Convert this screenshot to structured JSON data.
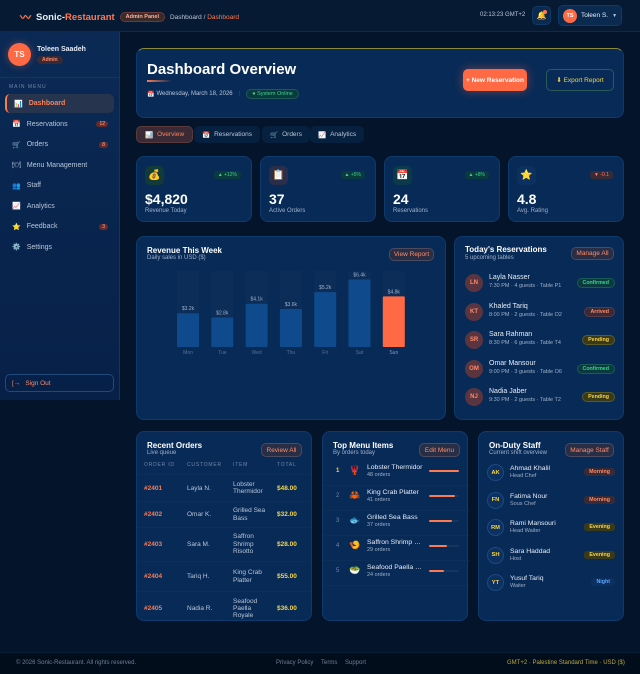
{
  "header": {
    "brand_first": "Sonic-",
    "brand_second": "Restaurant",
    "panel_badge": "Admin Panel",
    "breadcrumb": [
      "Dashboard",
      "Dashboard"
    ],
    "clock": "02:13:23 GMT+2",
    "user_initials": "TS",
    "user_name": "Toleen S."
  },
  "sidebar": {
    "user_initials": "TS",
    "user_name": "Toleen Saadeh",
    "role": "Admin",
    "section": "MAIN MENU",
    "items": [
      {
        "label": "Dashboard",
        "icon": "📊",
        "active": true
      },
      {
        "label": "Reservations",
        "icon": "📅",
        "count": "12"
      },
      {
        "label": "Orders",
        "icon": "🛒",
        "count": "8"
      },
      {
        "label": "Menu Management",
        "icon": "🍽"
      },
      {
        "label": "Staff",
        "icon": "👥"
      },
      {
        "label": "Analytics",
        "icon": "📈"
      },
      {
        "label": "Feedback",
        "icon": "⭐",
        "count": "3"
      },
      {
        "label": "Settings",
        "icon": "⚙️"
      }
    ],
    "signout": "Sign Out"
  },
  "hero": {
    "title": "Dashboard Overview",
    "date": "Wednesday, March 18, 2026",
    "status": "System Online",
    "new_btn": "+ New Reservation",
    "export_btn": "⬇ Export Report"
  },
  "tabs": [
    {
      "label": "Overview",
      "icon": "📊"
    },
    {
      "label": "Reservations",
      "icon": "📅"
    },
    {
      "label": "Orders",
      "icon": "🛒"
    },
    {
      "label": "Analytics",
      "icon": "📈"
    }
  ],
  "stats": [
    {
      "icon": "💰",
      "change": "▲ +12%",
      "value": "$4,820",
      "label": "Revenue Today"
    },
    {
      "icon": "📋",
      "change": "▲ +5%",
      "value": "37",
      "label": "Active Orders"
    },
    {
      "icon": "📅",
      "change": "▲ +8%",
      "value": "24",
      "label": "Reservations"
    },
    {
      "icon": "⭐",
      "change": "▼ -0.1",
      "value": "4.8",
      "label": "Avg. Rating"
    }
  ],
  "revenue": {
    "title": "Revenue This Week",
    "subtitle": "Daily sales in USD ($)",
    "button": "View Report"
  },
  "chart_data": {
    "type": "bar",
    "categories": [
      "Mon",
      "Tue",
      "Wed",
      "Thu",
      "Fri",
      "Sat",
      "Sun"
    ],
    "values": [
      3200,
      2800,
      4100,
      3600,
      5200,
      6400,
      4800
    ],
    "labels": [
      "$3.2k",
      "$2.8k",
      "$4.1k",
      "$3.6k",
      "$5.2k",
      "$6.4k",
      "$4.8k"
    ],
    "highlight": "Sun",
    "colors": {
      "bar": "#0f4a8c",
      "highlight": "#ff6a45"
    }
  },
  "reservations": {
    "title": "Today's Reservations",
    "subtitle": "5 upcoming tables",
    "button": "Manage All",
    "rows": [
      {
        "initials": "LN",
        "name": "Layla Nasser",
        "detail": "7:30 PM · 4 guests · Table P1",
        "status": "Confirmed",
        "cls": "confirmed"
      },
      {
        "initials": "KT",
        "name": "Khaled Tariq",
        "detail": "8:00 PM · 2 guests · Table O2",
        "status": "Arrived",
        "cls": "arrived"
      },
      {
        "initials": "SR",
        "name": "Sara Rahman",
        "detail": "8:30 PM · 6 guests · Table T4",
        "status": "Pending",
        "cls": "pending"
      },
      {
        "initials": "OM",
        "name": "Omar Mansour",
        "detail": "9:00 PM · 3 guests · Table O6",
        "status": "Confirmed",
        "cls": "confirmed"
      },
      {
        "initials": "NJ",
        "name": "Nadia Jaber",
        "detail": "9:30 PM · 2 guests · Table T2",
        "status": "Pending",
        "cls": "pending"
      }
    ]
  },
  "orders": {
    "title": "Recent Orders",
    "subtitle": "Live queue",
    "button": "Review All",
    "columns": [
      "ORDER ID",
      "CUSTOMER",
      "ITEM",
      "TOTAL"
    ],
    "rows": [
      {
        "id": "#2401",
        "customer": "Layla N.",
        "item": "Lobster Thermidor",
        "total": "$48.00"
      },
      {
        "id": "#2402",
        "customer": "Omar K.",
        "item": "Grilled Sea Bass",
        "total": "$32.00"
      },
      {
        "id": "#2403",
        "customer": "Sara M.",
        "item": "Saffron Shrimp Risotto",
        "total": "$28.00"
      },
      {
        "id": "#2404",
        "customer": "Tariq H.",
        "item": "King Crab Platter",
        "total": "$55.00"
      },
      {
        "id": "#2405",
        "customer": "Nadia R.",
        "item": "Seafood Paella Royale",
        "total": "$36.00"
      }
    ]
  },
  "menu": {
    "title": "Top Menu Items",
    "subtitle": "By orders today",
    "button": "Edit Menu",
    "items": [
      {
        "rank": "1",
        "icon": "🦞",
        "name": "Lobster Thermidor",
        "orders": "48 orders",
        "count": 48
      },
      {
        "rank": "2",
        "icon": "🦀",
        "name": "King Crab Platter",
        "orders": "41 orders",
        "count": 41
      },
      {
        "rank": "3",
        "icon": "🐟",
        "name": "Grilled Sea Bass",
        "orders": "37 orders",
        "count": 37
      },
      {
        "rank": "4",
        "icon": "🍤",
        "name": "Saffron Shrimp Risotto",
        "orders": "29 orders",
        "count": 29
      },
      {
        "rank": "5",
        "icon": "🥗",
        "name": "Seafood Paella Royale",
        "orders": "24 orders",
        "count": 24
      }
    ]
  },
  "staff": {
    "title": "On-Duty Staff",
    "subtitle": "Current shift overview",
    "button": "Manage Staff",
    "rows": [
      {
        "initials": "AK",
        "name": "Ahmad Khalil",
        "role": "Head Chef",
        "shift": "Morning",
        "cls": "morning"
      },
      {
        "initials": "FN",
        "name": "Fatima Nour",
        "role": "Sous Chef",
        "shift": "Morning",
        "cls": "morning"
      },
      {
        "initials": "RM",
        "name": "Rami Mansouri",
        "role": "Head Waiter",
        "shift": "Evening",
        "cls": "evening"
      },
      {
        "initials": "SH",
        "name": "Sara Haddad",
        "role": "Host",
        "shift": "Evening",
        "cls": "evening"
      },
      {
        "initials": "YT",
        "name": "Yusuf Tariq",
        "role": "Waiter",
        "shift": "Night",
        "cls": "night"
      }
    ]
  },
  "footer": {
    "copyright": "© 2026 Sonic-Restaurant. All rights reserved.",
    "links": [
      "Privacy Policy",
      "Terms",
      "Support"
    ],
    "locale": "GMT+2 · Palestine Standard Time · USD ($)"
  }
}
